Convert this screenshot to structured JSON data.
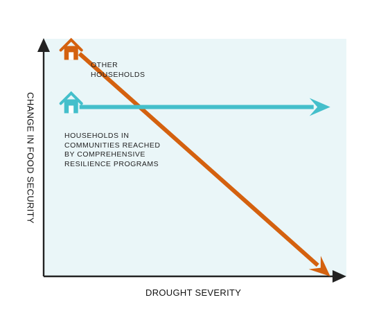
{
  "chart_data": {
    "type": "line",
    "title": "",
    "xlabel": "DROUGHT SEVERITY",
    "ylabel": "CHANGE IN FOOD SECURITY",
    "grid": false,
    "legend": "none",
    "plot_background": "#eaf6f8",
    "axis_color": "#222222",
    "series": [
      {
        "name": "OTHER\nHOUSEHOLDS",
        "icon": "house-icon",
        "color": "#d4610f",
        "trend": "decreasing",
        "points": [
          [
            0.12,
            0.96
          ],
          [
            0.96,
            0.0
          ]
        ]
      },
      {
        "name": "HOUSEHOLDS IN\nCOMMUNITIES REACHED\nBY COMPREHENSIVE\nRESILIENCE PROGRAMS",
        "icon": "house-icon",
        "color": "#44bfcb",
        "trend": "flat",
        "points": [
          [
            0.12,
            0.73
          ],
          [
            0.96,
            0.73
          ]
        ]
      }
    ]
  }
}
